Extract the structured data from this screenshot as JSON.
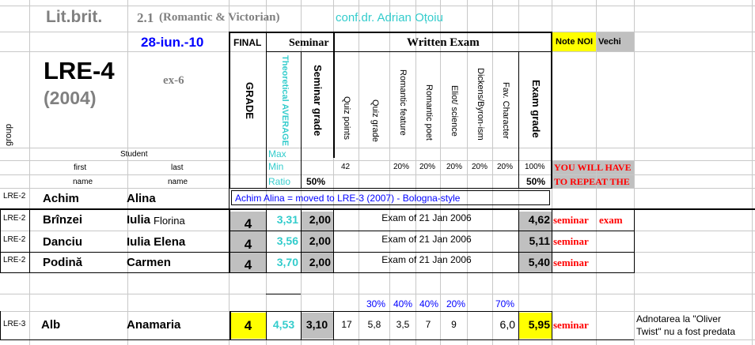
{
  "colors": {
    "teal": "#33cccc",
    "blue": "#0000ff",
    "red": "#ff0000",
    "yellow": "#ffff00",
    "gray": "#c0c0c0"
  },
  "header": {
    "course_main": "Lit.brit.",
    "course_num": "2.1",
    "course_sub": "(Romantic & Victorian)",
    "teacher": "conf.dr. Adrian Oțoiu",
    "date": "28-iun.-10",
    "group_code": "LRE-4",
    "group_year": "(2004)",
    "exam_code": "ex-6"
  },
  "columns": {
    "group": "group",
    "student": "Student",
    "first": "first",
    "last": "last",
    "name": "name",
    "final": "FINAL",
    "grade": "GRADE",
    "seminar": "Seminar",
    "theoretical_average": "Theoretical AVERAGE",
    "seminar_grade": "Seminar grade",
    "written_exam": "Written Exam",
    "quiz_points": "Quiz points",
    "quiz_grade": "Quiz grade",
    "romantic_feature": "Romantic feature",
    "romantic_poet": "Romantic poet",
    "eliot_science": "Eliot/ science",
    "dickens_byron": "Dickens/Byron-ism",
    "fav_character": "Fav. Character",
    "exam_grade": "Exam grade",
    "note_noi": "Note NOI",
    "vechi": "Vechi"
  },
  "params": {
    "max": "Max",
    "min": "Min",
    "ratio": "Ratio",
    "min_quiz": "42",
    "min_rf": "20%",
    "min_rp": "20%",
    "min_es": "20%",
    "min_db": "20%",
    "min_fc": "20%",
    "min_exam": "100%",
    "ratio_seminar": "50%",
    "ratio_exam": "50%",
    "warning_1": "YOU WILL HAVE",
    "warning_2": "TO REPEAT THE"
  },
  "rows": [
    {
      "group": "LRE-2",
      "first": "Achim",
      "last": "Alina",
      "note": "Achim  Alina = moved to LRE-3 (2007) - Bologna-style"
    },
    {
      "group": "LRE-2",
      "first": "Brînzei",
      "last": "Iulia",
      "last_extra": "Florina",
      "grade": "4",
      "avg": "3,31",
      "sem": "2,00",
      "exam_info": "Exam of 21 Jan 2006",
      "exam": "4,62",
      "repeat": "seminar",
      "repeat2": "exam"
    },
    {
      "group": "LRE-2",
      "first": "Danciu",
      "last": "Iulia Elena",
      "grade": "4",
      "avg": "3,56",
      "sem": "2,00",
      "exam_info": "Exam of 21 Jan 2006",
      "exam": "5,11",
      "repeat": "seminar"
    },
    {
      "group": "LRE-2",
      "first": "Podină",
      "last": "Carmen",
      "grade": "4",
      "avg": "3,70",
      "sem": "2,00",
      "exam_info": "Exam of 21 Jan 2006",
      "exam": "5,40",
      "repeat": "seminar"
    }
  ],
  "weights": {
    "quiz": "30%",
    "rf": "40%",
    "rp": "40%",
    "es": "20%",
    "fc": "70%"
  },
  "last_row": {
    "group": "LRE-3",
    "first": "Alb",
    "last": "Anamaria",
    "grade": "4",
    "avg": "4,53",
    "sem": "3,10",
    "quiz_points": "17",
    "quiz_grade": "5,8",
    "rf": "3,5",
    "rp": "7",
    "es": "9",
    "fc": "6,0",
    "exam": "5,95",
    "repeat": "seminar",
    "comment_1": "Adnotarea la \"Oliver",
    "comment_2": "Twist\" nu a fost predata"
  }
}
